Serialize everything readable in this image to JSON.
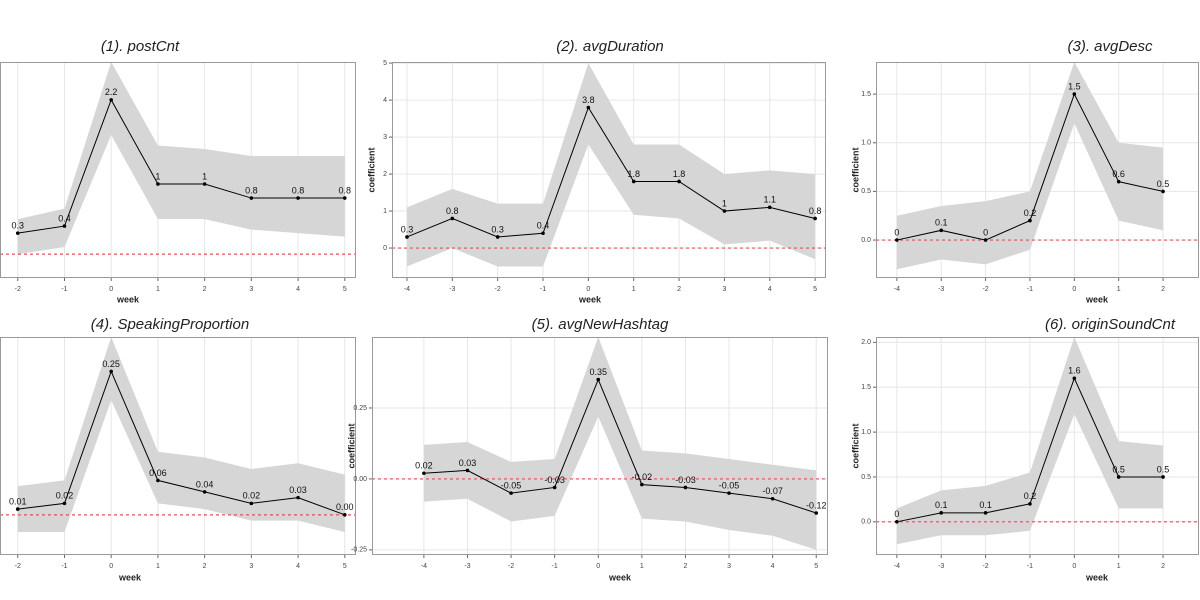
{
  "chart_data": [
    {
      "type": "line",
      "title": "(1). postCnt",
      "x_label": "week",
      "x": [
        -2,
        -1,
        0,
        1,
        2,
        3,
        4,
        5
      ],
      "values": [
        0.3,
        0.4,
        2.2,
        1,
        1,
        0.8,
        0.8,
        0.8
      ],
      "lower": [
        0.0,
        0.1,
        1.7,
        0.5,
        0.5,
        0.35,
        0.3,
        0.25
      ],
      "upper": [
        0.5,
        0.65,
        2.74,
        1.55,
        1.5,
        1.4,
        1.4,
        1.4
      ],
      "xlim": [
        -2.38,
        5.24
      ],
      "ylim": [
        -0.34,
        2.74
      ],
      "xticks": [
        -2,
        -1,
        0,
        1,
        2,
        3,
        4,
        5
      ],
      "reference": 0,
      "color": "#000000",
      "band_color": "#d6d6d6",
      "reference_color": "#e05050",
      "grid": true
    },
    {
      "type": "line",
      "title": "(2). avgDuration",
      "x_label": "week",
      "y_label": "coefficient",
      "x": [
        -4,
        -3,
        -2,
        -1,
        0,
        1,
        2,
        3,
        4,
        5
      ],
      "values": [
        0.3,
        0.8,
        0.3,
        0.4,
        3.8,
        1.8,
        1.8,
        1,
        1.1,
        0.8
      ],
      "lower": [
        -0.5,
        0.0,
        -0.5,
        -0.5,
        2.8,
        0.9,
        0.8,
        0.1,
        0.2,
        -0.3
      ],
      "upper": [
        1.1,
        1.6,
        1.2,
        1.2,
        5.0,
        2.8,
        2.8,
        2.0,
        2.1,
        2.0
      ],
      "xlim": [
        -4.33,
        5.24
      ],
      "ylim": [
        -0.81,
        5.03
      ],
      "xticks": [
        -4,
        -3,
        -2,
        -1,
        0,
        1,
        2,
        3,
        4,
        5
      ],
      "yticks": [
        0,
        1,
        2,
        3,
        4,
        5
      ],
      "reference": 0,
      "color": "#000000",
      "band_color": "#d6d6d6",
      "reference_color": "#e05050",
      "grid": true
    },
    {
      "type": "line",
      "title": "(3). avgDesc",
      "x_label": "week",
      "y_label": "coefficient",
      "x": [
        -4,
        -3,
        -2,
        -1,
        0,
        1,
        2
      ],
      "values": [
        0,
        0.1,
        0,
        0.2,
        1.5,
        0.6,
        0.5
      ],
      "lower": [
        -0.3,
        -0.2,
        -0.25,
        -0.1,
        1.2,
        0.2,
        0.1
      ],
      "upper": [
        0.25,
        0.35,
        0.4,
        0.5,
        1.83,
        1.0,
        0.95
      ],
      "xlim": [
        -4.47,
        2.81
      ],
      "ylim": [
        -0.39,
        1.83
      ],
      "xticks": [
        -4,
        -3,
        -2,
        -1,
        0,
        1,
        2
      ],
      "yticks": [
        {
          "value": 0,
          "label": "0.0"
        },
        0.5,
        {
          "value": 1,
          "label": "1.0"
        },
        1.5
      ],
      "reference": 0,
      "color": "#000000",
      "band_color": "#d6d6d6",
      "reference_color": "#e05050",
      "grid": true
    },
    {
      "type": "line",
      "title": "(4). SpeakingProportion",
      "x_label": "week",
      "x": [
        -2,
        -1,
        0,
        1,
        2,
        3,
        4,
        5
      ],
      "values": [
        0.01,
        0.02,
        0.25,
        0.06,
        0.04,
        0.02,
        0.03,
        0
      ],
      "value_labels": [
        "0.01",
        "0.02",
        "0.25",
        "0.06",
        "0.04",
        "0.02",
        "0.03",
        "0.00"
      ],
      "lower": [
        -0.03,
        -0.03,
        0.2,
        0.02,
        0.01,
        -0.01,
        -0.01,
        -0.03
      ],
      "upper": [
        0.05,
        0.06,
        0.31,
        0.11,
        0.1,
        0.08,
        0.09,
        0.07
      ],
      "xlim": [
        -2.38,
        5.24
      ],
      "ylim": [
        -0.07,
        0.31
      ],
      "xticks": [
        -2,
        -1,
        0,
        1,
        2,
        3,
        4,
        5
      ],
      "reference": 0,
      "color": "#000000",
      "band_color": "#d6d6d6",
      "reference_color": "#e05050",
      "grid": true
    },
    {
      "type": "line",
      "title": "(5). avgNewHashtag",
      "x_label": "week",
      "y_label": "coefficient",
      "x": [
        -4,
        -3,
        -2,
        -1,
        0,
        1,
        2,
        3,
        4,
        5
      ],
      "values": [
        0.02,
        0.03,
        -0.05,
        -0.03,
        0.35,
        -0.02,
        -0.03,
        -0.05,
        -0.07,
        -0.12
      ],
      "lower": [
        -0.08,
        -0.07,
        -0.15,
        -0.13,
        0.22,
        -0.14,
        -0.15,
        -0.18,
        -0.2,
        -0.25
      ],
      "upper": [
        0.12,
        0.13,
        0.06,
        0.07,
        0.5,
        0.1,
        0.09,
        0.07,
        0.05,
        0.03
      ],
      "xlim": [
        -5.19,
        5.27
      ],
      "ylim": [
        -0.268,
        0.5
      ],
      "xticks": [
        -4,
        -3,
        -2,
        -1,
        0,
        1,
        2,
        3,
        4,
        5
      ],
      "yticks": [
        -0.25,
        {
          "value": 0,
          "label": "0.00"
        },
        0.25
      ],
      "reference": 0,
      "color": "#000000",
      "band_color": "#d6d6d6",
      "reference_color": "#e05050",
      "grid": true
    },
    {
      "type": "line",
      "title": "(6). originSoundCnt",
      "x_label": "week",
      "y_label": "coefficient",
      "x": [
        -4,
        -3,
        -2,
        -1,
        0,
        1,
        2
      ],
      "values": [
        0,
        0.1,
        0.1,
        0.2,
        1.6,
        0.5,
        0.5
      ],
      "lower": [
        -0.25,
        -0.15,
        -0.15,
        -0.1,
        1.2,
        0.15,
        0.15
      ],
      "upper": [
        0.15,
        0.35,
        0.4,
        0.55,
        2.06,
        0.9,
        0.85
      ],
      "xlim": [
        -4.47,
        2.81
      ],
      "ylim": [
        -0.37,
        2.06
      ],
      "xticks": [
        -4,
        -3,
        -2,
        -1,
        0,
        1,
        2
      ],
      "yticks": [
        {
          "value": 0,
          "label": "0.0"
        },
        0.5,
        {
          "value": 1,
          "label": "1.0"
        },
        1.5,
        {
          "value": 2,
          "label": "2.0"
        }
      ],
      "reference": 0,
      "color": "#000000",
      "band_color": "#d6d6d6",
      "reference_color": "#e05050",
      "grid": true
    }
  ]
}
